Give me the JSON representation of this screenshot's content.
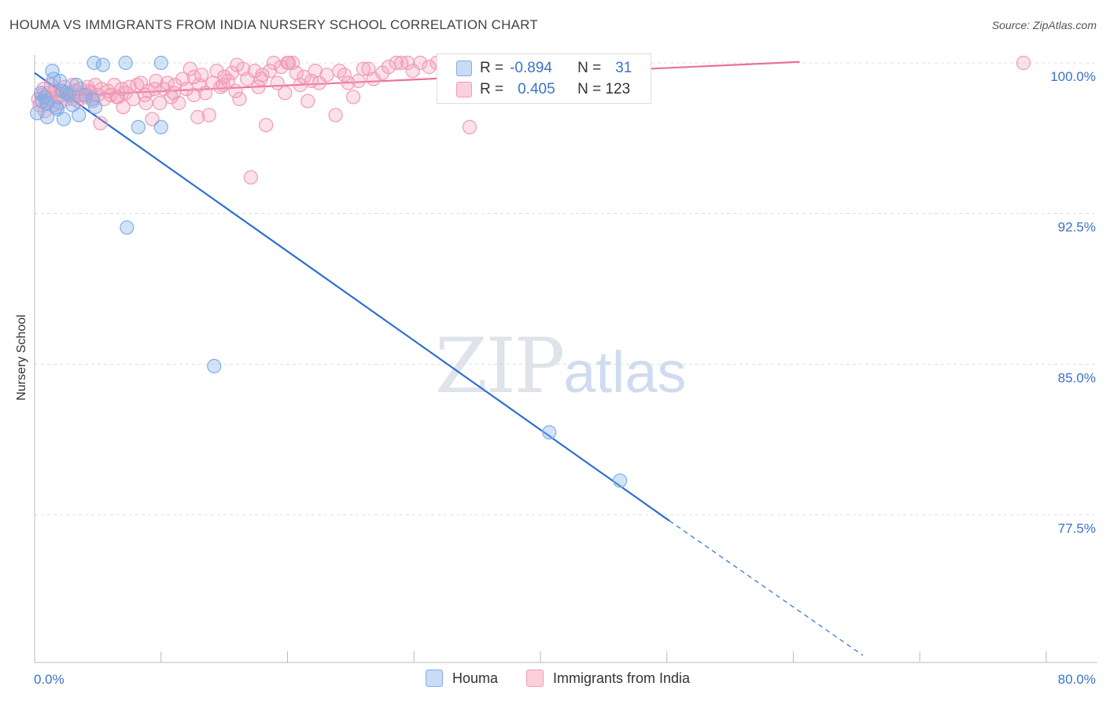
{
  "header": {
    "title": "HOUMA VS IMMIGRANTS FROM INDIA NURSERY SCHOOL CORRELATION CHART",
    "source": "Source: ZipAtlas.com"
  },
  "watermark": {
    "zip": "ZIP",
    "atlas": "atlas"
  },
  "legend": {
    "rows": [
      {
        "r_label": "R =",
        "r_value": "-0.894",
        "n_label": "N =",
        "n_value": "31",
        "color": "#a7c6ef"
      },
      {
        "r_label": "R =",
        "r_value": "0.405",
        "n_label": "N = 123",
        "n_value": "",
        "color": "#f7b6ca"
      }
    ]
  },
  "chart_data": {
    "type": "scatter",
    "title": "HOUMA VS IMMIGRANTS FROM INDIA NURSERY SCHOOL CORRELATION CHART",
    "ylabel": "Nursery School",
    "xlabel": "",
    "xlim": [
      0,
      80
    ],
    "ylim": [
      70.5,
      100.6
    ],
    "x_tick_labels": [
      "0.0%",
      "80.0%"
    ],
    "y_ticks": [
      100.0,
      92.5,
      85.0,
      77.5
    ],
    "y_tick_labels": [
      "100.0%",
      "92.5%",
      "85.0%",
      "77.5%"
    ],
    "grid": "horizontal dashed",
    "series": [
      {
        "name": "Houma",
        "color": "#7faee8",
        "line_color": "#2e6fd0",
        "points": [
          [
            0.2,
            97.5
          ],
          [
            0.5,
            98.5
          ],
          [
            0.6,
            98.1
          ],
          [
            0.8,
            98.3
          ],
          [
            1.0,
            98.0
          ],
          [
            1.4,
            99.6
          ],
          [
            1.5,
            99.2
          ],
          [
            1.7,
            97.8
          ],
          [
            1.8,
            97.7
          ],
          [
            2.0,
            99.1
          ],
          [
            2.2,
            98.6
          ],
          [
            2.5,
            98.5
          ],
          [
            2.7,
            98.4
          ],
          [
            3.0,
            97.9
          ],
          [
            3.3,
            98.9
          ],
          [
            3.5,
            97.4
          ],
          [
            4.0,
            98.4
          ],
          [
            4.6,
            98.2
          ],
          [
            4.7,
            100.0
          ],
          [
            5.4,
            99.9
          ],
          [
            7.2,
            100.0
          ],
          [
            7.3,
            91.8
          ],
          [
            8.2,
            96.8
          ],
          [
            10.0,
            100.0
          ],
          [
            10.0,
            96.8
          ],
          [
            14.2,
            84.9
          ],
          [
            4.8,
            97.8
          ],
          [
            2.3,
            97.2
          ],
          [
            40.7,
            81.6
          ],
          [
            46.3,
            79.2
          ],
          [
            1.0,
            97.3
          ]
        ],
        "trend_solid": [
          [
            0,
            99.5
          ],
          [
            50.2,
            77.2
          ]
        ],
        "trend_dashed": [
          [
            50.2,
            77.2
          ],
          [
            65.5,
            70.5
          ]
        ]
      },
      {
        "name": "Immigrants from India",
        "color": "#f29ab6",
        "line_color": "#e8729a",
        "points": [
          [
            0.3,
            98.2
          ],
          [
            0.4,
            97.9
          ],
          [
            0.6,
            98.4
          ],
          [
            0.8,
            97.6
          ],
          [
            0.9,
            98.0
          ],
          [
            1.1,
            98.5
          ],
          [
            1.2,
            98.2
          ],
          [
            1.5,
            97.9
          ],
          [
            1.6,
            98.6
          ],
          [
            1.8,
            98.3
          ],
          [
            2.0,
            98.0
          ],
          [
            2.2,
            98.4
          ],
          [
            2.4,
            98.8
          ],
          [
            2.6,
            98.2
          ],
          [
            2.8,
            98.5
          ],
          [
            3.0,
            98.9
          ],
          [
            3.2,
            98.6
          ],
          [
            3.4,
            98.1
          ],
          [
            3.6,
            98.7
          ],
          [
            3.8,
            98.4
          ],
          [
            4.0,
            98.3
          ],
          [
            4.2,
            98.8
          ],
          [
            4.4,
            98.5
          ],
          [
            4.6,
            98.1
          ],
          [
            4.8,
            98.9
          ],
          [
            5.0,
            98.4
          ],
          [
            5.3,
            98.7
          ],
          [
            5.5,
            98.2
          ],
          [
            5.8,
            98.6
          ],
          [
            6.0,
            98.4
          ],
          [
            6.3,
            98.9
          ],
          [
            6.6,
            98.3
          ],
          [
            6.9,
            98.7
          ],
          [
            7.2,
            98.5
          ],
          [
            7.5,
            98.8
          ],
          [
            7.8,
            98.2
          ],
          [
            8.1,
            98.9
          ],
          [
            8.4,
            99.0
          ],
          [
            8.7,
            98.4
          ],
          [
            9.0,
            98.6
          ],
          [
            9.3,
            97.2
          ],
          [
            9.6,
            99.1
          ],
          [
            9.9,
            98.0
          ],
          [
            10.2,
            98.7
          ],
          [
            10.5,
            99.0
          ],
          [
            10.8,
            98.3
          ],
          [
            11.1,
            98.9
          ],
          [
            11.4,
            98.0
          ],
          [
            11.7,
            99.2
          ],
          [
            12.0,
            98.7
          ],
          [
            12.3,
            99.7
          ],
          [
            12.6,
            99.3
          ],
          [
            12.9,
            97.3
          ],
          [
            13.2,
            99.4
          ],
          [
            13.5,
            98.5
          ],
          [
            13.8,
            97.4
          ],
          [
            14.1,
            99.0
          ],
          [
            14.4,
            99.6
          ],
          [
            14.7,
            98.8
          ],
          [
            15.0,
            99.3
          ],
          [
            15.3,
            99.1
          ],
          [
            15.6,
            99.5
          ],
          [
            15.9,
            98.6
          ],
          [
            16.2,
            98.2
          ],
          [
            16.5,
            99.7
          ],
          [
            16.8,
            99.2
          ],
          [
            17.1,
            94.3
          ],
          [
            17.4,
            99.6
          ],
          [
            17.7,
            98.8
          ],
          [
            18.0,
            99.4
          ],
          [
            18.3,
            96.9
          ],
          [
            18.6,
            99.6
          ],
          [
            18.9,
            100.0
          ],
          [
            19.2,
            99.0
          ],
          [
            19.5,
            99.8
          ],
          [
            19.8,
            98.5
          ],
          [
            20.1,
            100.0
          ],
          [
            20.4,
            100.0
          ],
          [
            20.7,
            99.5
          ],
          [
            21.0,
            98.9
          ],
          [
            21.3,
            99.3
          ],
          [
            21.6,
            98.1
          ],
          [
            21.9,
            99.1
          ],
          [
            22.2,
            99.6
          ],
          [
            23.1,
            99.4
          ],
          [
            23.8,
            97.4
          ],
          [
            24.1,
            99.6
          ],
          [
            24.8,
            99.0
          ],
          [
            25.2,
            98.3
          ],
          [
            25.6,
            99.1
          ],
          [
            26.0,
            99.7
          ],
          [
            26.4,
            99.7
          ],
          [
            27.5,
            99.5
          ],
          [
            28.0,
            99.8
          ],
          [
            28.6,
            100.0
          ],
          [
            29.0,
            100.0
          ],
          [
            29.5,
            100.0
          ],
          [
            29.9,
            99.6
          ],
          [
            30.5,
            100.0
          ],
          [
            31.2,
            99.8
          ],
          [
            31.8,
            100.0
          ],
          [
            34.4,
            96.8
          ],
          [
            78.2,
            100.0
          ],
          [
            20.0,
            100.0
          ],
          [
            16.0,
            99.9
          ],
          [
            13.0,
            98.9
          ],
          [
            11.0,
            98.5
          ],
          [
            9.5,
            98.7
          ],
          [
            8.8,
            98.0
          ],
          [
            7.0,
            97.8
          ],
          [
            6.5,
            98.3
          ],
          [
            5.2,
            97.0
          ],
          [
            4.3,
            98.6
          ],
          [
            3.1,
            98.2
          ],
          [
            2.1,
            98.6
          ],
          [
            1.3,
            98.9
          ],
          [
            0.7,
            98.7
          ],
          [
            22.5,
            99.0
          ],
          [
            24.5,
            99.4
          ],
          [
            26.8,
            99.2
          ],
          [
            12.6,
            98.4
          ],
          [
            14.9,
            98.9
          ],
          [
            17.9,
            99.2
          ]
        ],
        "trend": [
          [
            0,
            98.3
          ],
          [
            60.5,
            100.05
          ]
        ]
      }
    ]
  }
}
